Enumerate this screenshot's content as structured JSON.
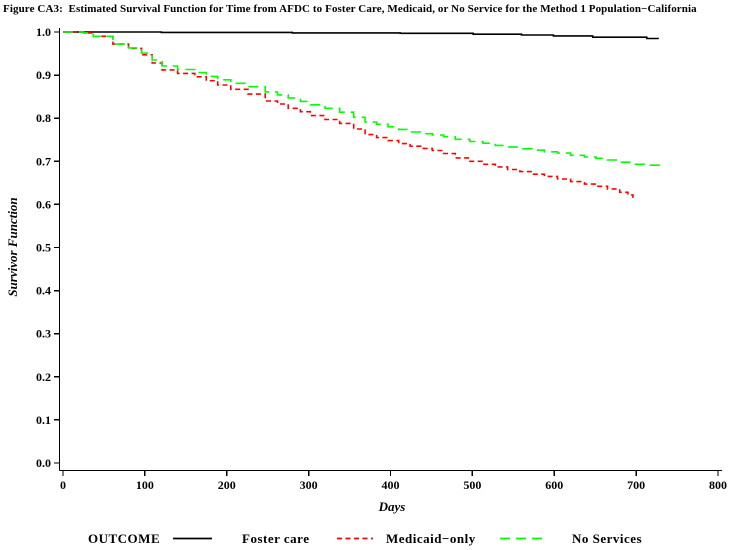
{
  "figure": {
    "title": "Figure CA3:  Estimated Survival Function for Time from AFDC to Foster Care, Medicaid, or No Service for the Method 1 Population−California"
  },
  "chart_data": {
    "type": "line",
    "subtype": "step-survival-curves",
    "title": "Figure CA3:  Estimated Survival Function for Time from AFDC to Foster Care, Medicaid, or No Service for the Method 1 Population−California",
    "xlabel": "Days",
    "ylabel": "Survivor Function",
    "xlim": [
      0,
      800
    ],
    "ylim": [
      0.0,
      1.0
    ],
    "x_ticks": [
      0,
      100,
      200,
      300,
      400,
      500,
      600,
      700,
      800
    ],
    "y_ticks": [
      "0.0",
      "0.1",
      "0.2",
      "0.3",
      "0.4",
      "0.5",
      "0.6",
      "0.7",
      "0.8",
      "0.9",
      "1.0"
    ],
    "grid": false,
    "legend": {
      "label": "OUTCOME",
      "position": "bottom",
      "entries": [
        {
          "name": "Foster care",
          "color": "#000000",
          "dash": "solid"
        },
        {
          "name": "Medicaid−only",
          "color": "#ff0000",
          "dash": "short"
        },
        {
          "name": "No Services",
          "color": "#00ff00",
          "dash": "long"
        }
      ]
    },
    "series": [
      {
        "name": "Foster care",
        "color": "#000000",
        "dash": "solid",
        "points": [
          [
            0,
            1.0
          ],
          [
            120,
            0.999
          ],
          [
            280,
            0.998
          ],
          [
            412,
            0.997
          ],
          [
            501,
            0.995
          ],
          [
            560,
            0.993
          ],
          [
            599,
            0.991
          ],
          [
            647,
            0.988
          ],
          [
            713,
            0.985
          ],
          [
            727,
            0.984
          ]
        ]
      },
      {
        "name": "Medicaid−only",
        "color": "#ff0000",
        "dash": "short",
        "points": [
          [
            0,
            1.0
          ],
          [
            25,
            0.998
          ],
          [
            37,
            0.99
          ],
          [
            61,
            0.972
          ],
          [
            80,
            0.962
          ],
          [
            96,
            0.947
          ],
          [
            109,
            0.928
          ],
          [
            121,
            0.912
          ],
          [
            140,
            0.904
          ],
          [
            161,
            0.896
          ],
          [
            175,
            0.887
          ],
          [
            189,
            0.877
          ],
          [
            205,
            0.867
          ],
          [
            226,
            0.856
          ],
          [
            247,
            0.84
          ],
          [
            262,
            0.833
          ],
          [
            275,
            0.823
          ],
          [
            290,
            0.815
          ],
          [
            302,
            0.806
          ],
          [
            320,
            0.797
          ],
          [
            338,
            0.788
          ],
          [
            355,
            0.775
          ],
          [
            369,
            0.762
          ],
          [
            383,
            0.755
          ],
          [
            397,
            0.748
          ],
          [
            410,
            0.741
          ],
          [
            424,
            0.735
          ],
          [
            438,
            0.73
          ],
          [
            451,
            0.725
          ],
          [
            465,
            0.718
          ],
          [
            479,
            0.708
          ],
          [
            497,
            0.7
          ],
          [
            513,
            0.693
          ],
          [
            528,
            0.687
          ],
          [
            543,
            0.681
          ],
          [
            558,
            0.676
          ],
          [
            573,
            0.67
          ],
          [
            588,
            0.665
          ],
          [
            604,
            0.659
          ],
          [
            620,
            0.653
          ],
          [
            637,
            0.647
          ],
          [
            651,
            0.642
          ],
          [
            665,
            0.636
          ],
          [
            680,
            0.628
          ],
          [
            690,
            0.622
          ],
          [
            696,
            0.615
          ]
        ]
      },
      {
        "name": "No Services",
        "color": "#00ff00",
        "dash": "long",
        "points": [
          [
            0,
            1.0
          ],
          [
            25,
            0.998
          ],
          [
            37,
            0.99
          ],
          [
            61,
            0.972
          ],
          [
            80,
            0.963
          ],
          [
            96,
            0.951
          ],
          [
            109,
            0.935
          ],
          [
            121,
            0.921
          ],
          [
            140,
            0.913
          ],
          [
            161,
            0.906
          ],
          [
            175,
            0.897
          ],
          [
            189,
            0.889
          ],
          [
            205,
            0.881
          ],
          [
            226,
            0.873
          ],
          [
            247,
            0.861
          ],
          [
            262,
            0.854
          ],
          [
            275,
            0.847
          ],
          [
            290,
            0.839
          ],
          [
            302,
            0.831
          ],
          [
            320,
            0.823
          ],
          [
            338,
            0.814
          ],
          [
            355,
            0.802
          ],
          [
            369,
            0.791
          ],
          [
            383,
            0.786
          ],
          [
            397,
            0.78
          ],
          [
            410,
            0.774
          ],
          [
            424,
            0.768
          ],
          [
            438,
            0.764
          ],
          [
            451,
            0.761
          ],
          [
            465,
            0.757
          ],
          [
            479,
            0.751
          ],
          [
            497,
            0.746
          ],
          [
            513,
            0.742
          ],
          [
            528,
            0.737
          ],
          [
            543,
            0.733
          ],
          [
            558,
            0.729
          ],
          [
            573,
            0.726
          ],
          [
            588,
            0.722
          ],
          [
            604,
            0.719
          ],
          [
            620,
            0.714
          ],
          [
            637,
            0.71
          ],
          [
            651,
            0.707
          ],
          [
            665,
            0.703
          ],
          [
            680,
            0.698
          ],
          [
            692,
            0.693
          ],
          [
            710,
            0.691
          ],
          [
            729,
            0.69
          ]
        ]
      }
    ]
  },
  "colors": {
    "background": "#ffffff",
    "axis": "#000000",
    "foster_care": "#000000",
    "medicaid_only": "#ff0000",
    "no_services": "#00ff00"
  }
}
